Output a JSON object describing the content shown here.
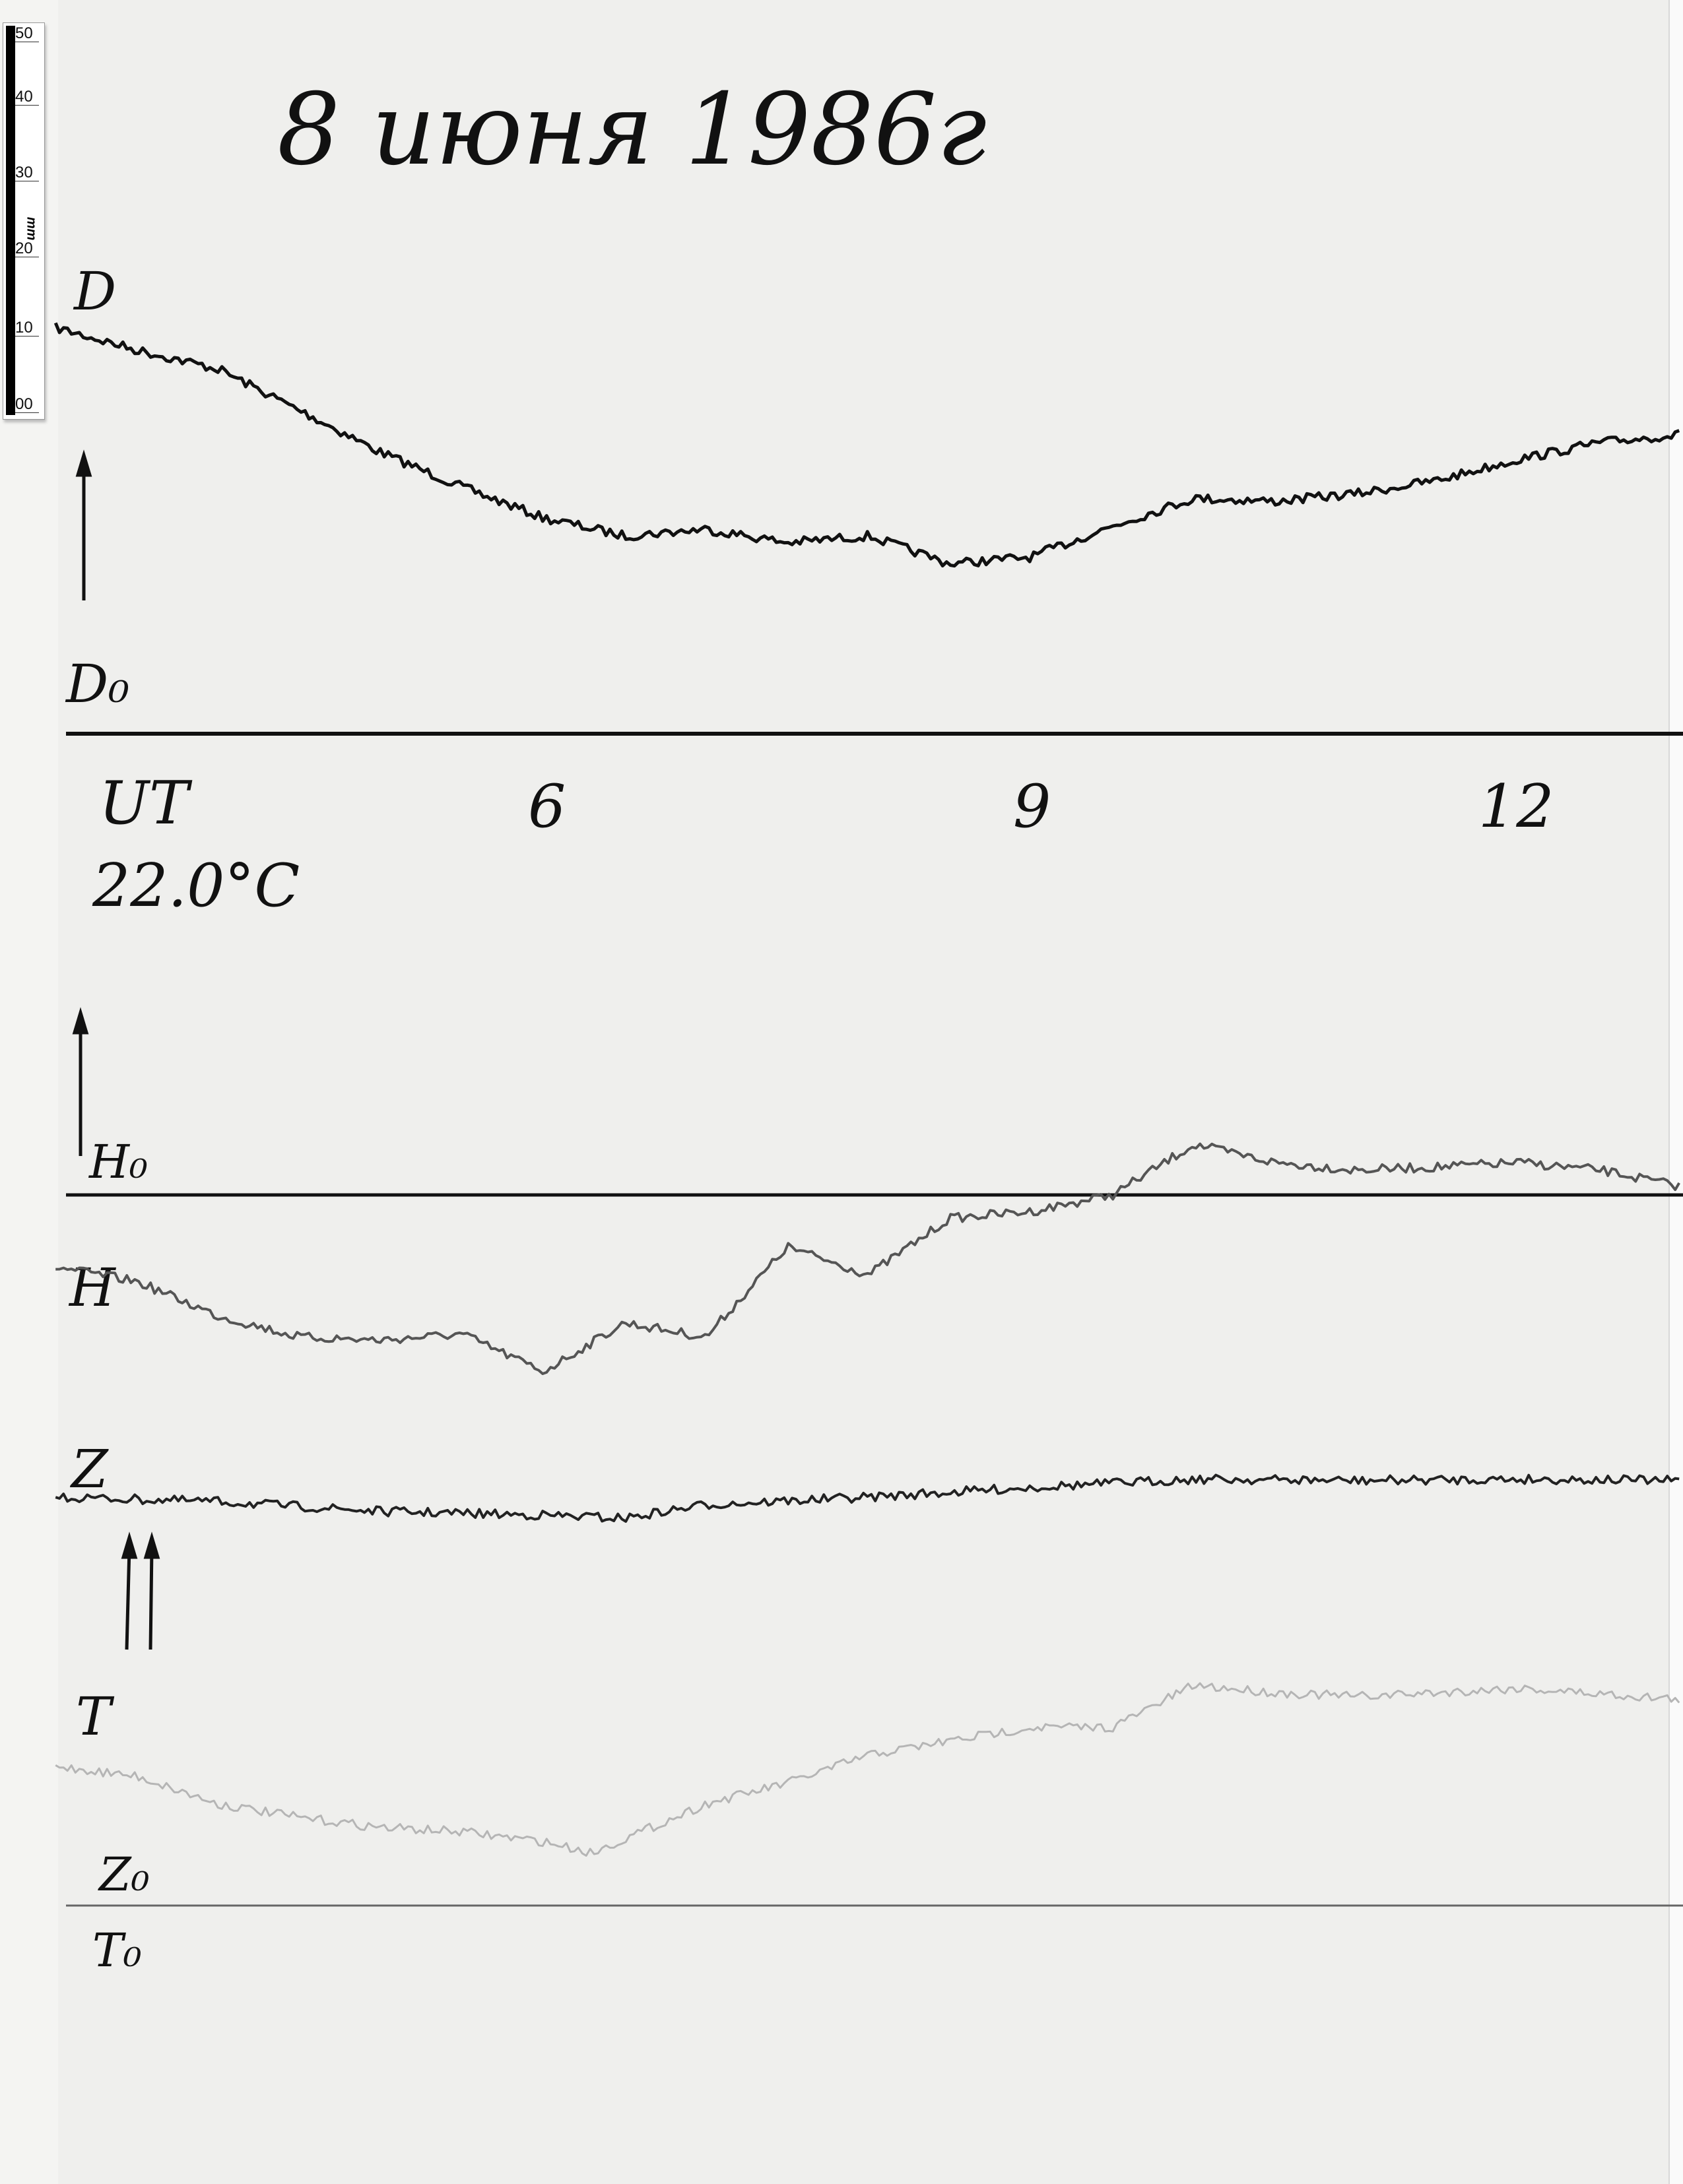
{
  "title": "8 июня 1986г",
  "scale_bar": {
    "unit": "mm",
    "ticks": [
      "50",
      "40",
      "30",
      "20",
      "10",
      "00"
    ]
  },
  "labels": {
    "D": "D",
    "D0": "D₀",
    "UT": "UT",
    "temperature": "22.0°C",
    "H0": "H₀",
    "H": "H",
    "Z": "Z",
    "T": "T",
    "Z0": "Z₀",
    "T0": "T₀"
  },
  "chart_data": {
    "type": "line",
    "title": "8 июня 1986г",
    "xlabel": "UT",
    "x_ticks": [
      {
        "value": 6,
        "label": "6"
      },
      {
        "value": 9,
        "label": "9"
      },
      {
        "value": 12,
        "label": "12"
      }
    ],
    "xlim": [
      3,
      13
    ],
    "y_unit": "mm",
    "grid": false,
    "baselines": [
      "D₀",
      "H₀",
      "Z₀ / T₀"
    ],
    "series": [
      {
        "name": "D",
        "color": "#111111",
        "baseline": "D₀",
        "x": [
          3,
          3.5,
          4,
          4.5,
          5,
          5.5,
          6,
          6.5,
          7,
          7.5,
          8,
          8.5,
          9,
          9.5,
          10,
          10.5,
          11,
          11.5,
          12,
          12.5,
          13
        ],
        "y": [
          54,
          51,
          48.5,
          43,
          37.4,
          32.8,
          28.7,
          26.3,
          27.2,
          25.4,
          26.3,
          22.6,
          23.5,
          27.6,
          31.3,
          30.9,
          31.9,
          33.7,
          36.5,
          38.7,
          39.8
        ]
      },
      {
        "name": "H",
        "color": "#555555",
        "baseline": "H₀",
        "x": [
          3,
          3.5,
          4,
          4.5,
          5,
          5.5,
          6,
          6.5,
          7,
          7.5,
          8,
          8.5,
          9,
          9.5,
          10,
          10.5,
          11,
          11.5,
          12,
          12.5,
          13
        ],
        "y": [
          -9.6,
          -11.5,
          -16.1,
          -18.9,
          -19.3,
          -18.5,
          -23.5,
          -17,
          -18.9,
          -6.9,
          -10.6,
          -3.1,
          -2.2,
          0,
          6.7,
          4.3,
          3.3,
          3.7,
          4.3,
          3.3,
          1.1
        ]
      },
      {
        "name": "Z",
        "color": "#222222",
        "baseline": "Z₀",
        "x": [
          3,
          4,
          5,
          6,
          6.5,
          7,
          8,
          9,
          10,
          11,
          12,
          13
        ],
        "y": [
          54.3,
          53.7,
          52.4,
          51.9,
          51.5,
          53.3,
          54.3,
          55.6,
          56.7,
          56.5,
          56.7,
          56.5
        ]
      },
      {
        "name": "T",
        "color": "#b5b5b5",
        "baseline": "T₀",
        "x": [
          3,
          3.5,
          4,
          4.5,
          5,
          5.5,
          6,
          6.3,
          7,
          7.5,
          8,
          8.5,
          9,
          9.5,
          10,
          10.5,
          11,
          11.5,
          12,
          13
        ],
        "y": [
          18.5,
          17.2,
          13.5,
          11.7,
          10.4,
          9.8,
          8.5,
          7,
          13.5,
          16.3,
          20,
          21.9,
          23.7,
          23.7,
          29.3,
          28.3,
          27.8,
          28.3,
          28.9,
          27.4
        ]
      }
    ]
  }
}
